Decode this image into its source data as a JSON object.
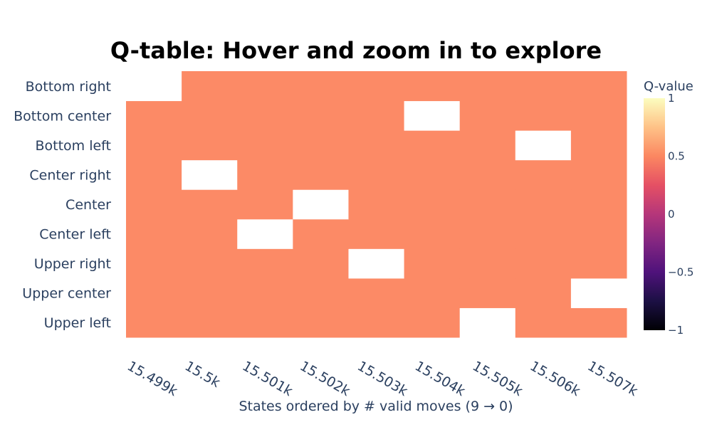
{
  "chart_data": {
    "type": "heatmap",
    "title": "Q-table: Hover and zoom in to explore",
    "xlabel": "States ordered by # valid moves (9 → 0)",
    "ylabel": "",
    "x_tick_labels": [
      "15.499k",
      "15.5k",
      "15.501k",
      "15.502k",
      "15.503k",
      "15.504k",
      "15.505k",
      "15.506k",
      "15.507k"
    ],
    "x": [
      15498.6,
      15499.6,
      15500.6,
      15501.6,
      15502.6,
      15503.6,
      15504.6,
      15505.6,
      15506.6
    ],
    "xlim": [
      15498.1,
      15506.8
    ],
    "y_categories": [
      "Upper left",
      "Upper center",
      "Upper right",
      "Center left",
      "Center",
      "Center right",
      "Bottom left",
      "Bottom center",
      "Bottom right"
    ],
    "z": [
      [
        0.6,
        0.6,
        0.6,
        0.6,
        0.6,
        0.6,
        null,
        0.6,
        0.6
      ],
      [
        0.6,
        0.6,
        0.6,
        0.6,
        0.6,
        0.6,
        0.6,
        0.6,
        null
      ],
      [
        0.6,
        0.6,
        0.6,
        0.6,
        null,
        0.6,
        0.6,
        0.6,
        0.6
      ],
      [
        0.6,
        0.6,
        null,
        0.6,
        0.6,
        0.6,
        0.6,
        0.6,
        0.6
      ],
      [
        0.6,
        0.6,
        0.6,
        null,
        0.6,
        0.6,
        0.6,
        0.6,
        0.6
      ],
      [
        0.6,
        null,
        0.6,
        0.6,
        0.6,
        0.6,
        0.6,
        0.6,
        0.6
      ],
      [
        0.6,
        0.6,
        0.6,
        0.6,
        0.6,
        0.6,
        0.6,
        null,
        0.6
      ],
      [
        0.6,
        0.6,
        0.6,
        0.6,
        0.6,
        null,
        0.6,
        0.6,
        0.6
      ],
      [
        null,
        0.6,
        0.6,
        0.6,
        0.6,
        0.6,
        0.6,
        0.6,
        0.6
      ]
    ],
    "colorscale": "magma",
    "colorbar": {
      "title": "Q-value",
      "range": [
        -1,
        1
      ],
      "ticks": [
        1,
        0.5,
        0,
        -0.5,
        -1
      ],
      "tick_labels": [
        "1",
        "0.5",
        "0",
        "−0.5",
        "−1"
      ]
    },
    "cell_color": "#fc8a66",
    "grid": false
  }
}
